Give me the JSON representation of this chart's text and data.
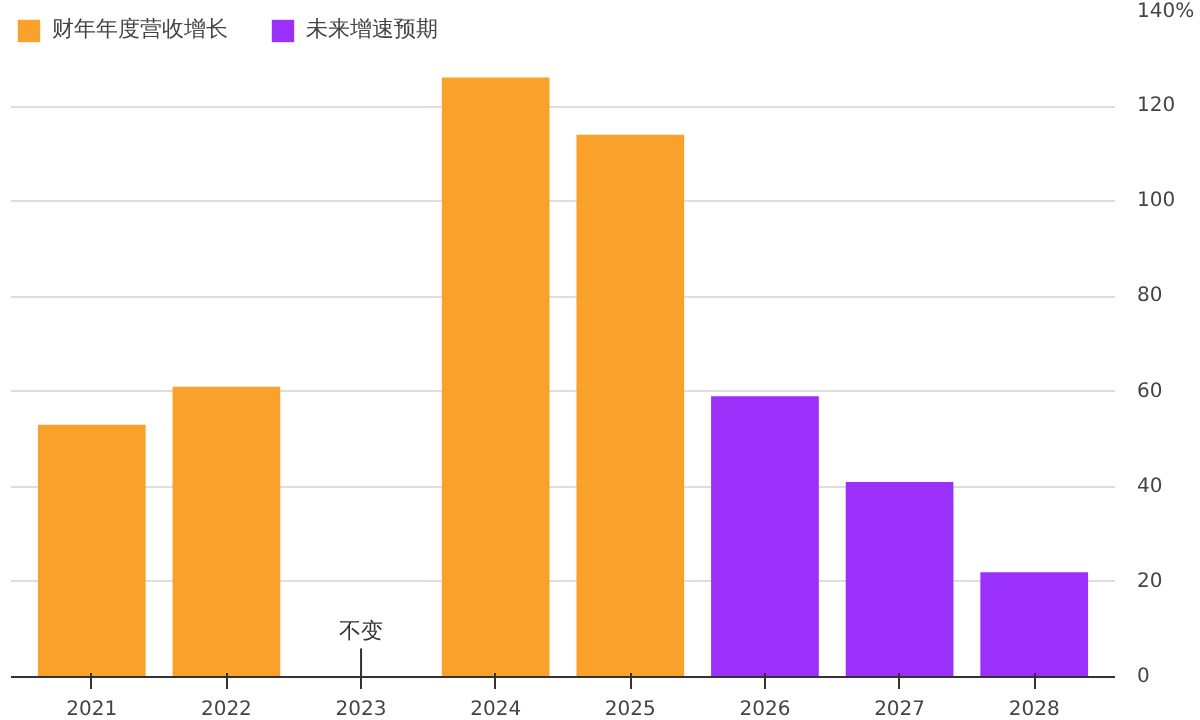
{
  "chart_data": {
    "type": "bar",
    "categories": [
      "2021",
      "2022",
      "2023",
      "2024",
      "2025",
      "2026",
      "2027",
      "2028"
    ],
    "series": [
      {
        "name": "财年年度营收增长",
        "color": "#f9a12b",
        "values": [
          53,
          61,
          0,
          126,
          114,
          null,
          null,
          null
        ]
      },
      {
        "name": "未来增速预期",
        "color": "#9b30fb",
        "values": [
          null,
          null,
          null,
          null,
          null,
          59,
          41,
          22
        ]
      }
    ],
    "ylim": [
      0,
      140
    ],
    "yticks": [
      0,
      20,
      40,
      60,
      80,
      100,
      120,
      {
        "value": 140,
        "label": "140%"
      }
    ],
    "grid": "y",
    "legend": "top left",
    "annotations": [
      {
        "text": "不变",
        "x": "2023",
        "y": 0
      }
    ]
  }
}
